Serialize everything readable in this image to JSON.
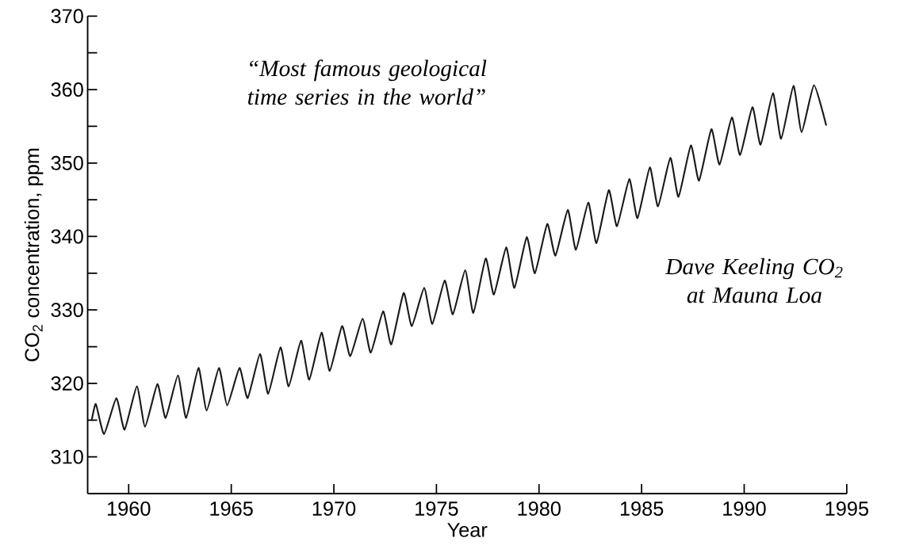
{
  "chart_data": {
    "type": "line",
    "xlabel": "Year",
    "ylabel": "CO$_{2}$ concentration, ppm",
    "annotations": [
      "“Most famous geological time series in the world”",
      "Dave Keeling CO$_{2}$ at Mauna Loa"
    ],
    "xlim": [
      1958,
      1995
    ],
    "ylim": [
      305,
      370
    ],
    "xticks": [
      1960,
      1965,
      1970,
      1975,
      1980,
      1985,
      1990,
      1995
    ],
    "yticks": [
      310,
      {
        "value": 315,
        "label": null
      },
      320,
      {
        "value": 325,
        "label": null
      },
      330,
      {
        "value": 335,
        "label": null
      },
      340,
      {
        "value": 345,
        "label": null
      },
      350,
      {
        "value": 355,
        "label": null
      },
      360,
      {
        "value": 365,
        "label": null
      },
      370
    ],
    "series": [
      {
        "color": "#1a1a1a",
        "x": [
          1958.2,
          1958.4,
          1958.8,
          1959.4,
          1959.8,
          1960.4,
          1960.8,
          1961.4,
          1961.8,
          1962.4,
          1962.8,
          1963.4,
          1963.8,
          1964.4,
          1964.8,
          1965.4,
          1965.8,
          1966.4,
          1966.8,
          1967.4,
          1967.8,
          1968.4,
          1968.8,
          1969.4,
          1969.8,
          1970.4,
          1970.8,
          1971.4,
          1971.8,
          1972.4,
          1972.8,
          1973.4,
          1973.8,
          1974.4,
          1974.8,
          1975.4,
          1975.8,
          1976.4,
          1976.8,
          1977.4,
          1977.8,
          1978.4,
          1978.8,
          1979.4,
          1979.8,
          1980.4,
          1980.8,
          1981.4,
          1981.8,
          1982.4,
          1982.8,
          1983.4,
          1983.8,
          1984.4,
          1984.8,
          1985.4,
          1985.8,
          1986.4,
          1986.8,
          1987.4,
          1987.8,
          1988.4,
          1988.8,
          1989.4,
          1989.8,
          1990.4,
          1990.8,
          1991.4,
          1991.8,
          1992.4,
          1992.8,
          1993.4,
          1994.0
        ],
        "values": [
          315.0,
          317.2,
          313.1,
          318.0,
          313.7,
          319.6,
          314.1,
          319.9,
          315.3,
          321.1,
          315.3,
          322.1,
          316.3,
          322.1,
          317.0,
          322.1,
          318.0,
          324.0,
          318.6,
          324.9,
          319.6,
          325.8,
          320.5,
          326.9,
          321.7,
          327.8,
          323.7,
          328.8,
          324.2,
          329.8,
          325.3,
          332.3,
          327.8,
          333.0,
          328.1,
          334.0,
          329.4,
          335.4,
          329.6,
          337.0,
          332.1,
          338.5,
          333.0,
          339.9,
          335.0,
          341.7,
          337.4,
          343.6,
          338.2,
          344.6,
          339.1,
          346.3,
          341.4,
          347.8,
          342.5,
          349.4,
          344.1,
          350.7,
          345.4,
          352.4,
          347.6,
          354.6,
          349.8,
          356.2,
          351.1,
          357.6,
          352.5,
          359.5,
          353.3,
          360.5,
          354.2,
          360.6,
          355.1
        ]
      }
    ]
  }
}
